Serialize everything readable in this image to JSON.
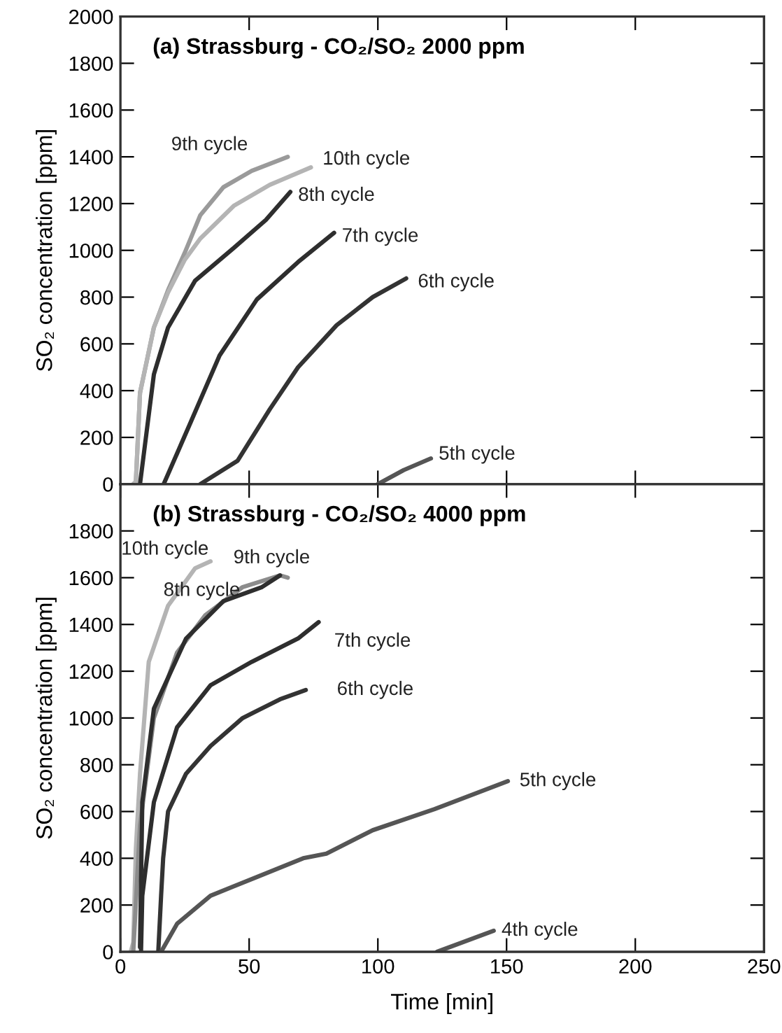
{
  "chart_data": [
    {
      "type": "line",
      "title": "(a) Strassburg - CO₂/SO₂ 2000 ppm",
      "ylabel": "SO₂ concentration [ppm]",
      "xlim": [
        0,
        250
      ],
      "xticks": [
        0,
        50,
        100,
        150,
        200,
        250
      ],
      "ylim": [
        0,
        2000
      ],
      "yticks": [
        0,
        200,
        400,
        600,
        800,
        1000,
        1200,
        1400,
        1600,
        1800,
        2000
      ],
      "tick_labels": "y",
      "grid": false,
      "legend": false,
      "marker": "none",
      "line_style": "solid",
      "series": [
        {
          "name": "9th cycle",
          "color": "#9a9a9a",
          "x": [
            5,
            6,
            7.6,
            13,
            18.5,
            25,
            31,
            40,
            51,
            65
          ],
          "values": [
            0,
            10,
            390,
            670,
            830,
            990,
            1150,
            1270,
            1340,
            1400
          ]
        },
        {
          "name": "10th cycle",
          "color": "#b4b4b4",
          "x": [
            5,
            6,
            7.6,
            13,
            18.5,
            25,
            31,
            44,
            58,
            74
          ],
          "values": [
            0,
            10,
            390,
            670,
            820,
            960,
            1050,
            1190,
            1280,
            1355
          ]
        },
        {
          "name": "8th cycle",
          "color": "#2e2e2e",
          "x": [
            7.6,
            13,
            18.5,
            29,
            44,
            56.5,
            66
          ],
          "values": [
            0,
            470,
            670,
            870,
            1010,
            1130,
            1250
          ]
        },
        {
          "name": "7th cycle",
          "color": "#2e2e2e",
          "x": [
            16.8,
            27.5,
            38.5,
            53,
            69,
            83
          ],
          "values": [
            0,
            270,
            550,
            790,
            950,
            1075
          ]
        },
        {
          "name": "6th cycle",
          "color": "#333333",
          "x": [
            31,
            45.5,
            58,
            69,
            84,
            98,
            111
          ],
          "values": [
            0,
            100,
            320,
            500,
            680,
            800,
            880
          ]
        },
        {
          "name": "5th cycle",
          "color": "#555555",
          "x": [
            100,
            110,
            120.6
          ],
          "values": [
            0,
            60,
            110
          ]
        }
      ]
    },
    {
      "type": "line",
      "title": "(b) Strassburg - CO₂/SO₂ 4000 ppm",
      "ylabel": "SO₂ concentration [ppm]",
      "xlabel": "Time [min]",
      "xlim": [
        0,
        250
      ],
      "xticks": [
        0,
        50,
        100,
        150,
        200,
        250
      ],
      "ylim": [
        0,
        2000
      ],
      "yticks": [
        0,
        200,
        400,
        600,
        800,
        1000,
        1200,
        1400,
        1600,
        1800,
        {
          "value": 2000,
          "label": null
        }
      ],
      "grid": false,
      "legend": false,
      "marker": "none",
      "line_style": "solid",
      "series": [
        {
          "name": "10th cycle",
          "color": "#b4b4b4",
          "x": [
            4,
            5,
            6,
            7.6,
            11,
            18.5,
            29,
            35
          ],
          "values": [
            0,
            40,
            440,
            760,
            1240,
            1480,
            1640,
            1670
          ]
        },
        {
          "name": "9th cycle",
          "color": "#8c8c8c",
          "x": [
            5,
            7.6,
            13,
            22,
            33,
            47.5,
            62,
            65
          ],
          "values": [
            0,
            540,
            1000,
            1280,
            1440,
            1560,
            1610,
            1600
          ]
        },
        {
          "name": "8th cycle",
          "color": "#2e2e2e",
          "x": [
            7.6,
            8.5,
            13,
            25.5,
            40,
            55,
            62
          ],
          "values": [
            20,
            640,
            1040,
            1340,
            1500,
            1560,
            1610
          ]
        },
        {
          "name": "7th cycle",
          "color": "#2e2e2e",
          "x": [
            8,
            8.5,
            13,
            22,
            35,
            51,
            69,
            77
          ],
          "values": [
            0,
            240,
            640,
            960,
            1140,
            1240,
            1340,
            1410
          ]
        },
        {
          "name": "6th cycle",
          "color": "#333333",
          "x": [
            14.7,
            15.8,
            16.6,
            18.5,
            25.5,
            35,
            47.5,
            62,
            72
          ],
          "values": [
            0,
            240,
            400,
            600,
            762,
            880,
            1000,
            1080,
            1120
          ]
        },
        {
          "name": "5th cycle",
          "color": "#555555",
          "x": [
            15.8,
            22,
            35,
            53,
            71,
            80,
            98,
            122,
            150.5
          ],
          "values": [
            0,
            120,
            240,
            320,
            400,
            420,
            520,
            610,
            730
          ]
        },
        {
          "name": "4th cycle",
          "color": "#555555",
          "x": [
            123,
            145
          ],
          "values": [
            0,
            90
          ]
        }
      ]
    }
  ]
}
